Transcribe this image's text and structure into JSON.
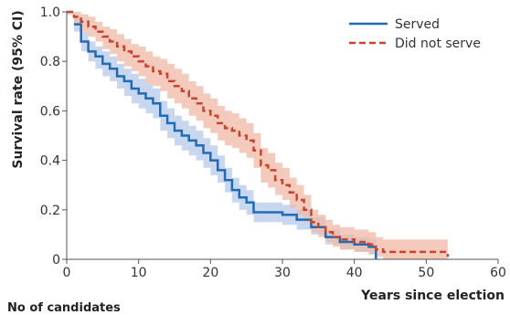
{
  "chart_data": {
    "type": "line",
    "subtype": "kaplan-meier step curves with 95% CI bands",
    "xlabel": "Years since election",
    "ylabel": "Survival rate (95% CI)",
    "xlim": [
      0,
      60
    ],
    "ylim": [
      0,
      1.0
    ],
    "x_ticks": [
      0,
      10,
      20,
      30,
      40,
      50,
      60
    ],
    "y_ticks": [
      0,
      0.2,
      0.4,
      0.6,
      0.8,
      1.0
    ],
    "x_tick_labels": [
      "0",
      "10",
      "20",
      "30",
      "40",
      "50",
      "60"
    ],
    "y_tick_labels": [
      "0",
      "0.2",
      "0.4",
      "0.6",
      "0.8",
      "1.0"
    ],
    "grid": false,
    "legend_position": "top-right",
    "series": [
      {
        "name": "Served",
        "color": "#1f6cb5",
        "band_color": "#b7c8ea",
        "line_style": "solid",
        "x": [
          1,
          2,
          3,
          4,
          5,
          6,
          7,
          8,
          9,
          10,
          11,
          12,
          13,
          14,
          15,
          16,
          17,
          18,
          19,
          20,
          21,
          22,
          23,
          24,
          25,
          26,
          27,
          28,
          30,
          32,
          34,
          36,
          38,
          40,
          42,
          43
        ],
        "y": [
          0.95,
          0.88,
          0.84,
          0.82,
          0.79,
          0.77,
          0.74,
          0.72,
          0.69,
          0.67,
          0.65,
          0.63,
          0.58,
          0.55,
          0.52,
          0.5,
          0.48,
          0.46,
          0.43,
          0.4,
          0.36,
          0.32,
          0.28,
          0.25,
          0.23,
          0.19,
          0.19,
          0.19,
          0.18,
          0.16,
          0.13,
          0.09,
          0.07,
          0.06,
          0.05,
          0.0
        ],
        "lower": [
          0.92,
          0.84,
          0.8,
          0.77,
          0.74,
          0.72,
          0.69,
          0.66,
          0.63,
          0.61,
          0.59,
          0.57,
          0.52,
          0.49,
          0.46,
          0.44,
          0.42,
          0.4,
          0.37,
          0.34,
          0.31,
          0.27,
          0.23,
          0.2,
          0.18,
          0.15,
          0.15,
          0.15,
          0.14,
          0.12,
          0.1,
          0.06,
          0.04,
          0.03,
          0.02,
          0.0
        ],
        "upper": [
          0.98,
          0.92,
          0.88,
          0.86,
          0.84,
          0.82,
          0.79,
          0.77,
          0.75,
          0.73,
          0.71,
          0.69,
          0.64,
          0.61,
          0.58,
          0.56,
          0.54,
          0.52,
          0.49,
          0.46,
          0.42,
          0.37,
          0.33,
          0.3,
          0.28,
          0.23,
          0.23,
          0.23,
          0.22,
          0.2,
          0.17,
          0.12,
          0.1,
          0.09,
          0.08,
          0.02
        ]
      },
      {
        "name": "Did not serve",
        "color": "#c8442d",
        "band_color": "#f0b8a6",
        "line_style": "dashed",
        "x": [
          0,
          1,
          2,
          3,
          4,
          5,
          6,
          7,
          8,
          9,
          10,
          11,
          12,
          13,
          14,
          15,
          16,
          17,
          18,
          19,
          20,
          21,
          22,
          23,
          24,
          25,
          26,
          27,
          28,
          29,
          30,
          31,
          32,
          33,
          34,
          35,
          36,
          37,
          38,
          40,
          42,
          43,
          44,
          45,
          50,
          53
        ],
        "y": [
          1.0,
          0.98,
          0.96,
          0.94,
          0.92,
          0.9,
          0.88,
          0.86,
          0.84,
          0.82,
          0.8,
          0.78,
          0.76,
          0.75,
          0.72,
          0.7,
          0.68,
          0.65,
          0.63,
          0.6,
          0.58,
          0.55,
          0.53,
          0.52,
          0.5,
          0.48,
          0.44,
          0.38,
          0.36,
          0.32,
          0.3,
          0.27,
          0.24,
          0.2,
          0.15,
          0.13,
          0.11,
          0.09,
          0.08,
          0.07,
          0.06,
          0.04,
          0.03,
          0.03,
          0.03,
          0.01
        ],
        "lower": [
          0.99,
          0.95,
          0.92,
          0.9,
          0.88,
          0.85,
          0.83,
          0.8,
          0.78,
          0.76,
          0.74,
          0.71,
          0.7,
          0.68,
          0.65,
          0.63,
          0.61,
          0.58,
          0.56,
          0.53,
          0.51,
          0.48,
          0.46,
          0.45,
          0.43,
          0.41,
          0.37,
          0.31,
          0.29,
          0.26,
          0.24,
          0.21,
          0.18,
          0.15,
          0.11,
          0.09,
          0.07,
          0.05,
          0.04,
          0.03,
          0.02,
          0.01,
          0.0,
          0.0,
          0.0,
          0.0
        ],
        "upper": [
          1.0,
          1.0,
          0.99,
          0.98,
          0.96,
          0.94,
          0.93,
          0.91,
          0.89,
          0.87,
          0.86,
          0.84,
          0.82,
          0.81,
          0.79,
          0.77,
          0.75,
          0.72,
          0.7,
          0.67,
          0.65,
          0.62,
          0.6,
          0.59,
          0.57,
          0.55,
          0.51,
          0.45,
          0.43,
          0.39,
          0.37,
          0.33,
          0.3,
          0.26,
          0.2,
          0.18,
          0.16,
          0.14,
          0.13,
          0.12,
          0.11,
          0.09,
          0.08,
          0.08,
          0.08,
          0.06
        ]
      }
    ]
  },
  "footer": {
    "title": "No of candidates"
  }
}
